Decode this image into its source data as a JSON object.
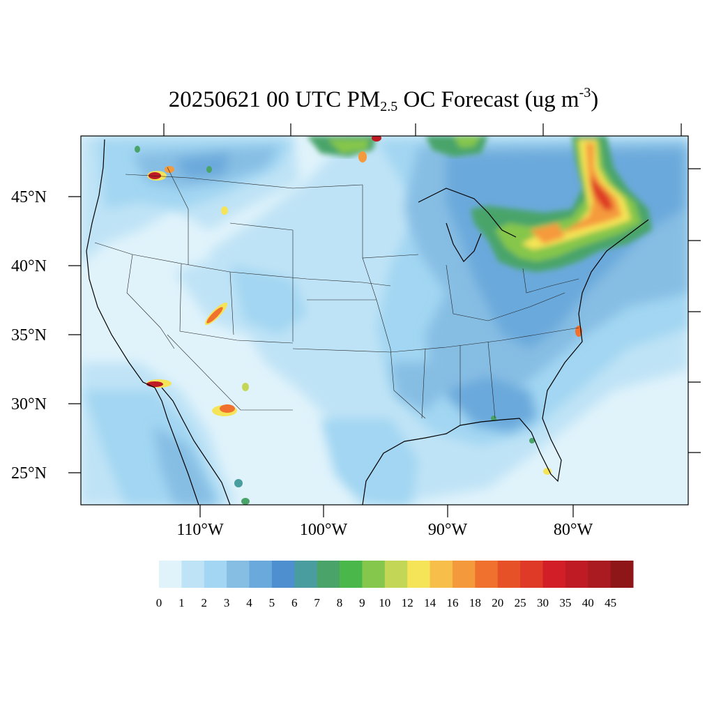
{
  "title": {
    "prefix": "20250621 00 UTC PM",
    "subscript": "2.5",
    "middle": " OC Forecast (ug m",
    "superscript": "-3",
    "suffix": ")"
  },
  "axes": {
    "lat_labels": [
      "45°N",
      "40°N",
      "35°N",
      "30°N",
      "25°N"
    ],
    "lon_labels": [
      "110°W",
      "100°W",
      "90°W",
      "80°W"
    ]
  },
  "colorbar": {
    "labels": [
      "0",
      "1",
      "2",
      "3",
      "4",
      "5",
      "6",
      "7",
      "8",
      "9",
      "10",
      "12",
      "14",
      "16",
      "18",
      "20",
      "25",
      "30",
      "35",
      "40",
      "45"
    ],
    "colors": [
      "#e0f3fb",
      "#bfe3f6",
      "#a2d6f2",
      "#86bde3",
      "#6aa9dc",
      "#4d8fcf",
      "#4a9d9f",
      "#4aa46a",
      "#4ab74a",
      "#85c64c",
      "#c4d656",
      "#f5e457",
      "#f7be4a",
      "#f59a3c",
      "#f0702d",
      "#e65128",
      "#de3a27",
      "#d21f27",
      "#be1b24",
      "#aa1a21",
      "#8e1619"
    ]
  },
  "icons": {
    "map": "contour-map-icon"
  }
}
